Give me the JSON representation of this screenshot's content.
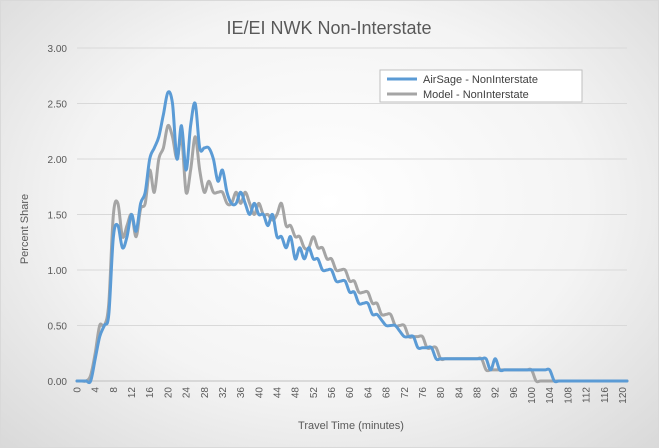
{
  "chart_data": {
    "type": "line",
    "title": "IE/EI NWK Non-Interstate",
    "xlabel": "Travel Time (minutes)",
    "ylabel": "Percent Share",
    "xlim": [
      0,
      121
    ],
    "ylim": [
      0,
      3.0
    ],
    "x_ticks": [
      0,
      4,
      8,
      12,
      16,
      20,
      24,
      28,
      32,
      36,
      40,
      44,
      48,
      52,
      56,
      60,
      64,
      68,
      72,
      76,
      80,
      84,
      88,
      92,
      96,
      100,
      104,
      108,
      112,
      116,
      120
    ],
    "y_ticks": [
      "0.00",
      "0.50",
      "1.00",
      "1.50",
      "2.00",
      "2.50",
      "3.00"
    ],
    "legend_position": "top-right",
    "series": [
      {
        "name": "AirSage - NonInterstate",
        "color": "#5b9bd5",
        "points": [
          [
            0,
            0
          ],
          [
            1,
            0
          ],
          [
            2,
            0
          ],
          [
            3,
            0
          ],
          [
            4,
            0.2
          ],
          [
            5,
            0.4
          ],
          [
            6,
            0.5
          ],
          [
            7,
            0.6
          ],
          [
            8,
            1.3
          ],
          [
            9,
            1.4
          ],
          [
            10,
            1.2
          ],
          [
            11,
            1.3
          ],
          [
            12,
            1.5
          ],
          [
            13,
            1.35
          ],
          [
            14,
            1.6
          ],
          [
            15,
            1.7
          ],
          [
            16,
            2.0
          ],
          [
            17,
            2.1
          ],
          [
            18,
            2.2
          ],
          [
            19,
            2.4
          ],
          [
            20,
            2.6
          ],
          [
            21,
            2.5
          ],
          [
            22,
            2.0
          ],
          [
            23,
            2.3
          ],
          [
            24,
            1.9
          ],
          [
            25,
            2.3
          ],
          [
            26,
            2.5
          ],
          [
            27,
            2.1
          ],
          [
            28,
            2.1
          ],
          [
            29,
            2.1
          ],
          [
            30,
            2.0
          ],
          [
            31,
            1.8
          ],
          [
            32,
            1.9
          ],
          [
            33,
            1.7
          ],
          [
            34,
            1.6
          ],
          [
            35,
            1.6
          ],
          [
            36,
            1.7
          ],
          [
            37,
            1.6
          ],
          [
            38,
            1.5
          ],
          [
            39,
            1.6
          ],
          [
            40,
            1.5
          ],
          [
            41,
            1.5
          ],
          [
            42,
            1.4
          ],
          [
            43,
            1.5
          ],
          [
            44,
            1.3
          ],
          [
            45,
            1.3
          ],
          [
            46,
            1.2
          ],
          [
            47,
            1.3
          ],
          [
            48,
            1.1
          ],
          [
            49,
            1.2
          ],
          [
            50,
            1.1
          ],
          [
            51,
            1.2
          ],
          [
            52,
            1.1
          ],
          [
            53,
            1.1
          ],
          [
            54,
            1.0
          ],
          [
            55,
            1.0
          ],
          [
            56,
            1.0
          ],
          [
            57,
            0.9
          ],
          [
            58,
            0.9
          ],
          [
            59,
            0.9
          ],
          [
            60,
            0.8
          ],
          [
            61,
            0.8
          ],
          [
            62,
            0.7
          ],
          [
            63,
            0.7
          ],
          [
            64,
            0.7
          ],
          [
            65,
            0.6
          ],
          [
            66,
            0.6
          ],
          [
            67,
            0.55
          ],
          [
            68,
            0.5
          ],
          [
            69,
            0.5
          ],
          [
            70,
            0.5
          ],
          [
            71,
            0.45
          ],
          [
            72,
            0.4
          ],
          [
            73,
            0.4
          ],
          [
            74,
            0.4
          ],
          [
            75,
            0.3
          ],
          [
            76,
            0.3
          ],
          [
            77,
            0.3
          ],
          [
            78,
            0.3
          ],
          [
            79,
            0.2
          ],
          [
            80,
            0.2
          ],
          [
            81,
            0.2
          ],
          [
            82,
            0.2
          ],
          [
            83,
            0.2
          ],
          [
            84,
            0.2
          ],
          [
            85,
            0.2
          ],
          [
            86,
            0.2
          ],
          [
            87,
            0.2
          ],
          [
            88,
            0.2
          ],
          [
            89,
            0.2
          ],
          [
            90,
            0.2
          ],
          [
            91,
            0.1
          ],
          [
            92,
            0.2
          ],
          [
            93,
            0.1
          ],
          [
            94,
            0.1
          ],
          [
            95,
            0.1
          ],
          [
            96,
            0.1
          ],
          [
            97,
            0.1
          ],
          [
            98,
            0.1
          ],
          [
            99,
            0.1
          ],
          [
            100,
            0.1
          ],
          [
            101,
            0.1
          ],
          [
            102,
            0.1
          ],
          [
            103,
            0.1
          ],
          [
            104,
            0.1
          ],
          [
            105,
            0
          ],
          [
            106,
            0
          ],
          [
            107,
            0
          ],
          [
            108,
            0
          ],
          [
            110,
            0
          ],
          [
            112,
            0
          ],
          [
            116,
            0
          ],
          [
            120,
            0
          ],
          [
            121,
            0
          ]
        ]
      },
      {
        "name": "Model - NonInterstate",
        "color": "#a5a5a5",
        "points": [
          [
            0,
            0
          ],
          [
            1,
            0
          ],
          [
            2,
            0
          ],
          [
            3,
            0.05
          ],
          [
            4,
            0.25
          ],
          [
            5,
            0.5
          ],
          [
            6,
            0.5
          ],
          [
            7,
            0.7
          ],
          [
            8,
            1.5
          ],
          [
            9,
            1.6
          ],
          [
            10,
            1.3
          ],
          [
            11,
            1.4
          ],
          [
            12,
            1.5
          ],
          [
            13,
            1.3
          ],
          [
            14,
            1.55
          ],
          [
            15,
            1.6
          ],
          [
            16,
            1.9
          ],
          [
            17,
            1.7
          ],
          [
            18,
            2.0
          ],
          [
            19,
            2.1
          ],
          [
            20,
            2.3
          ],
          [
            21,
            2.2
          ],
          [
            22,
            2.0
          ],
          [
            23,
            2.2
          ],
          [
            24,
            1.7
          ],
          [
            25,
            1.9
          ],
          [
            26,
            2.2
          ],
          [
            27,
            1.9
          ],
          [
            28,
            1.7
          ],
          [
            29,
            1.8
          ],
          [
            30,
            1.7
          ],
          [
            31,
            1.7
          ],
          [
            32,
            1.7
          ],
          [
            33,
            1.6
          ],
          [
            34,
            1.6
          ],
          [
            35,
            1.7
          ],
          [
            36,
            1.6
          ],
          [
            37,
            1.7
          ],
          [
            38,
            1.6
          ],
          [
            39,
            1.5
          ],
          [
            40,
            1.6
          ],
          [
            41,
            1.5
          ],
          [
            42,
            1.5
          ],
          [
            43,
            1.45
          ],
          [
            44,
            1.5
          ],
          [
            45,
            1.6
          ],
          [
            46,
            1.4
          ],
          [
            47,
            1.4
          ],
          [
            48,
            1.3
          ],
          [
            49,
            1.3
          ],
          [
            50,
            1.2
          ],
          [
            51,
            1.2
          ],
          [
            52,
            1.3
          ],
          [
            53,
            1.2
          ],
          [
            54,
            1.2
          ],
          [
            55,
            1.1
          ],
          [
            56,
            1.1
          ],
          [
            57,
            1.0
          ],
          [
            58,
            1.0
          ],
          [
            59,
            1.0
          ],
          [
            60,
            0.9
          ],
          [
            61,
            0.9
          ],
          [
            62,
            0.8
          ],
          [
            63,
            0.8
          ],
          [
            64,
            0.8
          ],
          [
            65,
            0.7
          ],
          [
            66,
            0.7
          ],
          [
            67,
            0.6
          ],
          [
            68,
            0.6
          ],
          [
            69,
            0.6
          ],
          [
            70,
            0.5
          ],
          [
            71,
            0.5
          ],
          [
            72,
            0.5
          ],
          [
            73,
            0.4
          ],
          [
            74,
            0.4
          ],
          [
            75,
            0.4
          ],
          [
            76,
            0.4
          ],
          [
            77,
            0.3
          ],
          [
            78,
            0.3
          ],
          [
            79,
            0.3
          ],
          [
            80,
            0.2
          ],
          [
            81,
            0.2
          ],
          [
            82,
            0.2
          ],
          [
            83,
            0.2
          ],
          [
            84,
            0.2
          ],
          [
            85,
            0.2
          ],
          [
            86,
            0.2
          ],
          [
            87,
            0.2
          ],
          [
            88,
            0.2
          ],
          [
            89,
            0.2
          ],
          [
            90,
            0.1
          ],
          [
            91,
            0.1
          ],
          [
            92,
            0.1
          ],
          [
            93,
            0.1
          ],
          [
            94,
            0.1
          ],
          [
            95,
            0.1
          ],
          [
            96,
            0.1
          ],
          [
            97,
            0.1
          ],
          [
            98,
            0.1
          ],
          [
            99,
            0.1
          ],
          [
            100,
            0.1
          ],
          [
            101,
            0
          ],
          [
            102,
            0
          ],
          [
            104,
            0
          ],
          [
            108,
            0
          ],
          [
            112,
            0
          ],
          [
            116,
            0
          ],
          [
            120,
            0
          ],
          [
            121,
            0
          ]
        ]
      }
    ]
  }
}
